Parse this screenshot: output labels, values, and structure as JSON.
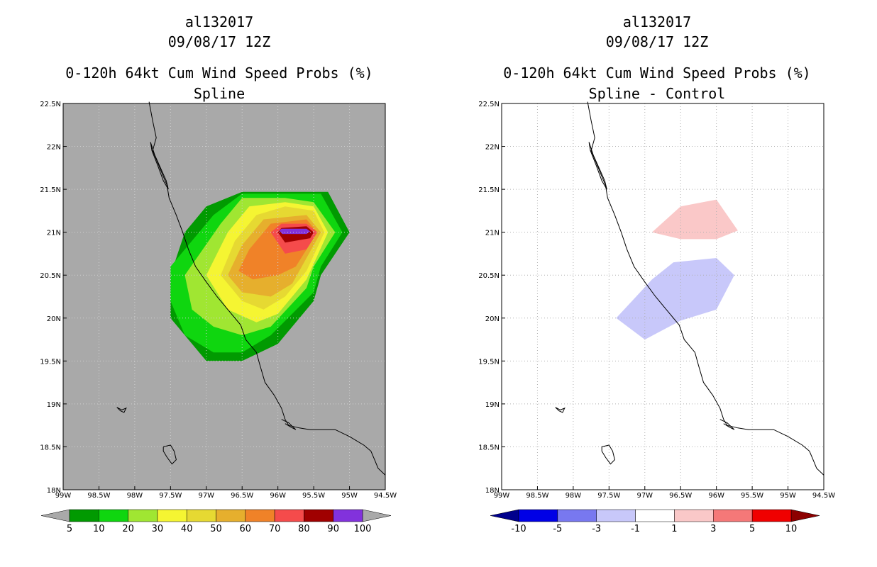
{
  "chart_data": [
    {
      "type": "heatmap",
      "id": "left",
      "title_lines": [
        "al132017",
        "09/08/17 12Z",
        "0-120h 64kt Cum Wind Speed Probs (%)",
        "Spline"
      ],
      "xlabel": "",
      "ylabel": "",
      "xlim": [
        -99,
        -94.5
      ],
      "ylim": [
        18,
        22.5
      ],
      "x_ticks": [
        {
          "value": -99,
          "label": "99W"
        },
        {
          "value": -98.5,
          "label": "98.5W"
        },
        {
          "value": -98,
          "label": "98W"
        },
        {
          "value": -97.5,
          "label": "97.5W"
        },
        {
          "value": -97,
          "label": "97W"
        },
        {
          "value": -96.5,
          "label": "96.5W"
        },
        {
          "value": -96,
          "label": "96W"
        },
        {
          "value": -95.5,
          "label": "95.5W"
        },
        {
          "value": -95,
          "label": "95W"
        },
        {
          "value": -94.5,
          "label": "94.5W"
        }
      ],
      "y_ticks": [
        {
          "value": 18,
          "label": "18N"
        },
        {
          "value": 18.5,
          "label": "18.5N"
        },
        {
          "value": 19,
          "label": "19N"
        },
        {
          "value": 19.5,
          "label": "19.5N"
        },
        {
          "value": 20,
          "label": "20N"
        },
        {
          "value": 20.5,
          "label": "20.5N"
        },
        {
          "value": 21,
          "label": "21N"
        },
        {
          "value": 21.5,
          "label": "21.5N"
        },
        {
          "value": 22,
          "label": "22N"
        },
        {
          "value": 22.5,
          "label": "22.5N"
        }
      ],
      "grid": true,
      "background": "#a9a9a9",
      "contours": [
        {
          "level": "5-10",
          "color": "#019a01",
          "points": [
            [
              -97.5,
              20.5
            ],
            [
              -97.5,
              20
            ],
            [
              -97,
              19.5
            ],
            [
              -96.5,
              19.5
            ],
            [
              -96,
              19.7
            ],
            [
              -95.5,
              20.2
            ],
            [
              -95.4,
              20.5
            ],
            [
              -95,
              21
            ],
            [
              -95.3,
              21.47
            ],
            [
              -95.8,
              21.47
            ],
            [
              -96.5,
              21.47
            ],
            [
              -97,
              21.3
            ],
            [
              -97.3,
              21
            ]
          ]
        },
        {
          "level": "10-20",
          "color": "#0fd60f",
          "points": [
            [
              -97.5,
              20.6
            ],
            [
              -97.5,
              20.2
            ],
            [
              -97.3,
              19.8
            ],
            [
              -96.9,
              19.6
            ],
            [
              -96.5,
              19.6
            ],
            [
              -96.1,
              19.8
            ],
            [
              -95.5,
              20.3
            ],
            [
              -95.4,
              20.6
            ],
            [
              -95.1,
              21
            ],
            [
              -95.4,
              21.45
            ],
            [
              -95.8,
              21.45
            ],
            [
              -96.5,
              21.45
            ],
            [
              -96.9,
              21.2
            ],
            [
              -97.2,
              20.9
            ]
          ]
        },
        {
          "level": "20-30",
          "color": "#a0e632",
          "points": [
            [
              -97.3,
              20.5
            ],
            [
              -97.2,
              20.1
            ],
            [
              -96.9,
              19.9
            ],
            [
              -96.5,
              19.8
            ],
            [
              -96.1,
              19.9
            ],
            [
              -95.6,
              20.35
            ],
            [
              -95.5,
              20.6
            ],
            [
              -95.2,
              21
            ],
            [
              -95.5,
              21.35
            ],
            [
              -95.9,
              21.4
            ],
            [
              -96.5,
              21.4
            ],
            [
              -96.8,
              21.1
            ]
          ]
        },
        {
          "level": "30-40",
          "color": "#f5f532",
          "points": [
            [
              -97,
              20.5
            ],
            [
              -96.7,
              20.1
            ],
            [
              -96.3,
              19.95
            ],
            [
              -96,
              20.05
            ],
            [
              -95.6,
              20.45
            ],
            [
              -95.3,
              21
            ],
            [
              -95.5,
              21.3
            ],
            [
              -95.9,
              21.35
            ],
            [
              -96.4,
              21.3
            ],
            [
              -96.7,
              21
            ]
          ]
        },
        {
          "level": "40-50",
          "color": "#e6d932",
          "points": [
            [
              -96.8,
              20.5
            ],
            [
              -96.5,
              20.2
            ],
            [
              -96.2,
              20.1
            ],
            [
              -95.9,
              20.25
            ],
            [
              -95.6,
              20.55
            ],
            [
              -95.35,
              21
            ],
            [
              -95.5,
              21.25
            ],
            [
              -95.9,
              21.3
            ],
            [
              -96.3,
              21.2
            ],
            [
              -96.6,
              20.9
            ]
          ]
        },
        {
          "level": "50-60",
          "color": "#e6af2d",
          "points": [
            [
              -96.7,
              20.5
            ],
            [
              -96.5,
              20.3
            ],
            [
              -96.1,
              20.25
            ],
            [
              -95.8,
              20.4
            ],
            [
              -95.4,
              21
            ],
            [
              -95.6,
              21.2
            ],
            [
              -96.2,
              21.15
            ],
            [
              -96.5,
              20.85
            ]
          ]
        },
        {
          "level": "60-70",
          "color": "#f08228",
          "points": [
            [
              -96.55,
              20.55
            ],
            [
              -96.35,
              20.45
            ],
            [
              -96,
              20.5
            ],
            [
              -95.75,
              20.6
            ],
            [
              -95.45,
              21
            ],
            [
              -95.6,
              21.15
            ],
            [
              -96.1,
              21.1
            ],
            [
              -96.4,
              20.8
            ]
          ]
        },
        {
          "level": "70-80",
          "color": "#f54b4b",
          "points": [
            [
              -96.1,
              21
            ],
            [
              -95.9,
              20.75
            ],
            [
              -95.6,
              20.8
            ],
            [
              -95.45,
              21
            ],
            [
              -95.6,
              21.1
            ],
            [
              -95.95,
              21.1
            ]
          ]
        },
        {
          "level": "80-90",
          "color": "#a00000",
          "points": [
            [
              -96,
              21
            ],
            [
              -95.9,
              20.88
            ],
            [
              -95.55,
              20.93
            ],
            [
              -95.5,
              21
            ],
            [
              -95.6,
              21.07
            ],
            [
              -95.95,
              21.05
            ]
          ]
        },
        {
          "level": "90-100",
          "color": "#8232dc",
          "points": [
            [
              -95.98,
              21.02
            ],
            [
              -95.94,
              20.98
            ],
            [
              -95.6,
              20.98
            ],
            [
              -95.55,
              21.01
            ],
            [
              -95.6,
              21.04
            ],
            [
              -95.95,
              21.04
            ]
          ]
        }
      ],
      "colorbar": {
        "labels": [
          "5",
          "10",
          "20",
          "30",
          "40",
          "50",
          "60",
          "70",
          "80",
          "90",
          "100"
        ],
        "colors": [
          "#019a01",
          "#0fd60f",
          "#a0e632",
          "#f5f532",
          "#e6d932",
          "#e6af2d",
          "#f08228",
          "#f54b4b",
          "#a00000",
          "#8232dc"
        ],
        "low_color": "#a9a9a9",
        "high_color": "#a9a9a9"
      }
    },
    {
      "type": "heatmap",
      "id": "right",
      "title_lines": [
        "al132017",
        "09/08/17 12Z",
        "0-120h 64kt Cum Wind Speed Probs (%)",
        "Spline - Control"
      ],
      "xlabel": "",
      "ylabel": "",
      "xlim": [
        -99,
        -94.5
      ],
      "ylim": [
        18,
        22.5
      ],
      "x_ticks": [
        {
          "value": -99,
          "label": "99W"
        },
        {
          "value": -98.5,
          "label": "98.5W"
        },
        {
          "value": -98,
          "label": "98W"
        },
        {
          "value": -97.5,
          "label": "97.5W"
        },
        {
          "value": -97,
          "label": "97W"
        },
        {
          "value": -96.5,
          "label": "96.5W"
        },
        {
          "value": -96,
          "label": "96W"
        },
        {
          "value": -95.5,
          "label": "95.5W"
        },
        {
          "value": -95,
          "label": "95W"
        },
        {
          "value": -94.5,
          "label": "94.5W"
        }
      ],
      "y_ticks": [
        {
          "value": 18,
          "label": "18N"
        },
        {
          "value": 18.5,
          "label": "18.5N"
        },
        {
          "value": 19,
          "label": "19N"
        },
        {
          "value": 19.5,
          "label": "19.5N"
        },
        {
          "value": 20,
          "label": "20N"
        },
        {
          "value": 20.5,
          "label": "20.5N"
        },
        {
          "value": 21,
          "label": "21N"
        },
        {
          "value": 21.5,
          "label": "21.5N"
        },
        {
          "value": 22,
          "label": "22N"
        },
        {
          "value": 22.5,
          "label": "22.5N"
        }
      ],
      "grid": true,
      "background": "#ffffff",
      "contours": [
        {
          "level": "1-3",
          "color": "#fac8c8",
          "points": [
            [
              -96.9,
              21
            ],
            [
              -96.5,
              21.3
            ],
            [
              -96,
              21.38
            ],
            [
              -95.7,
              21.02
            ],
            [
              -96,
              20.92
            ],
            [
              -96.5,
              20.92
            ]
          ]
        },
        {
          "level": "-3--1",
          "color": "#c8c8fa",
          "points": [
            [
              -97.4,
              20
            ],
            [
              -96.9,
              20.45
            ],
            [
              -96.6,
              20.65
            ],
            [
              -96,
              20.7
            ],
            [
              -95.75,
              20.5
            ],
            [
              -96,
              20.1
            ],
            [
              -96.5,
              19.97
            ],
            [
              -97,
              19.75
            ]
          ]
        }
      ],
      "colorbar": {
        "labels": [
          "-10",
          "-5",
          "-3",
          "-1",
          "1",
          "3",
          "5",
          "10"
        ],
        "colors": [
          "#0000e6",
          "#7878f0",
          "#c8c8fa",
          "#ffffff",
          "#fac8c8",
          "#f57878",
          "#f00000"
        ],
        "low_color": "#00008c",
        "high_color": "#8c0000"
      }
    }
  ]
}
